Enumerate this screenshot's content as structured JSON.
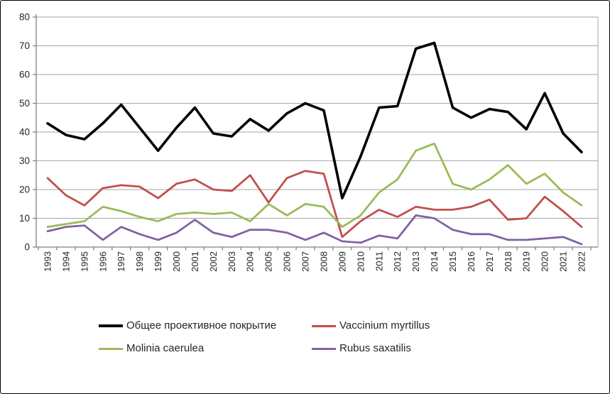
{
  "figure": {
    "background": "#ffffff",
    "border_color": "#000000",
    "grid_color": "#a6a6a6",
    "axis_color": "#808080",
    "text_color": "#262626"
  },
  "chart_data": {
    "type": "line",
    "title": "",
    "xlabel": "",
    "ylabel": "",
    "ylim": [
      0,
      80
    ],
    "y_tick_step": 10,
    "y_ticks": [
      "0",
      "10",
      "20",
      "30",
      "40",
      "50",
      "60",
      "70",
      "80"
    ],
    "grid": true,
    "legend_position": "bottom",
    "x": [
      "1993",
      "1994",
      "1995",
      "1996",
      "1997",
      "1998",
      "1999",
      "2000",
      "2001",
      "2002",
      "2003",
      "2004",
      "2005",
      "2006",
      "2007",
      "2008",
      "2009",
      "2010",
      "2011",
      "2012",
      "2013",
      "2014",
      "2015",
      "2016",
      "2017",
      "2018",
      "2019",
      "2020",
      "2021",
      "2022"
    ],
    "series": [
      {
        "name": "Общее проективное покрытие",
        "color": "#000000",
        "line_width": 3.6,
        "values": [
          43,
          39,
          37.5,
          43,
          49.5,
          41.5,
          33.5,
          41.5,
          48.5,
          39.5,
          38.5,
          44.5,
          40.5,
          46.5,
          50,
          47.5,
          17,
          31.5,
          48.5,
          49,
          69,
          71,
          48.5,
          45,
          48,
          47,
          41,
          53.5,
          39.5,
          33
        ]
      },
      {
        "name": "Vaccinium myrtillus",
        "color": "#C0504D",
        "line_width": 2.8,
        "values": [
          24,
          18,
          14.5,
          20.5,
          21.5,
          21,
          17,
          22,
          23.5,
          20,
          19.5,
          25,
          15.5,
          24,
          26.5,
          25.5,
          3.5,
          9,
          13,
          10.5,
          14,
          13,
          13,
          14,
          16.5,
          9.5,
          10,
          17.5,
          12.5,
          7
        ]
      },
      {
        "name": "Molinia caerulea",
        "color": "#9BBB59",
        "line_width": 2.8,
        "values": [
          7,
          8,
          9,
          14,
          12.5,
          10.5,
          9,
          11.5,
          12,
          11.5,
          12,
          9,
          15,
          11,
          15,
          14,
          7,
          11,
          19,
          23.5,
          33.5,
          36,
          22,
          20,
          23.5,
          28.5,
          22,
          25.5,
          19,
          14.5
        ]
      },
      {
        "name": "Rubus saxatilis",
        "color": "#8064A2",
        "line_width": 2.8,
        "values": [
          5.5,
          7,
          7.5,
          2.5,
          7,
          4.5,
          2.5,
          5,
          9.5,
          5,
          3.5,
          6,
          6,
          5,
          2.5,
          5,
          2,
          1.5,
          4,
          3,
          11,
          10,
          6,
          4.5,
          4.5,
          2.5,
          2.5,
          3,
          3.5,
          1
        ]
      }
    ]
  }
}
